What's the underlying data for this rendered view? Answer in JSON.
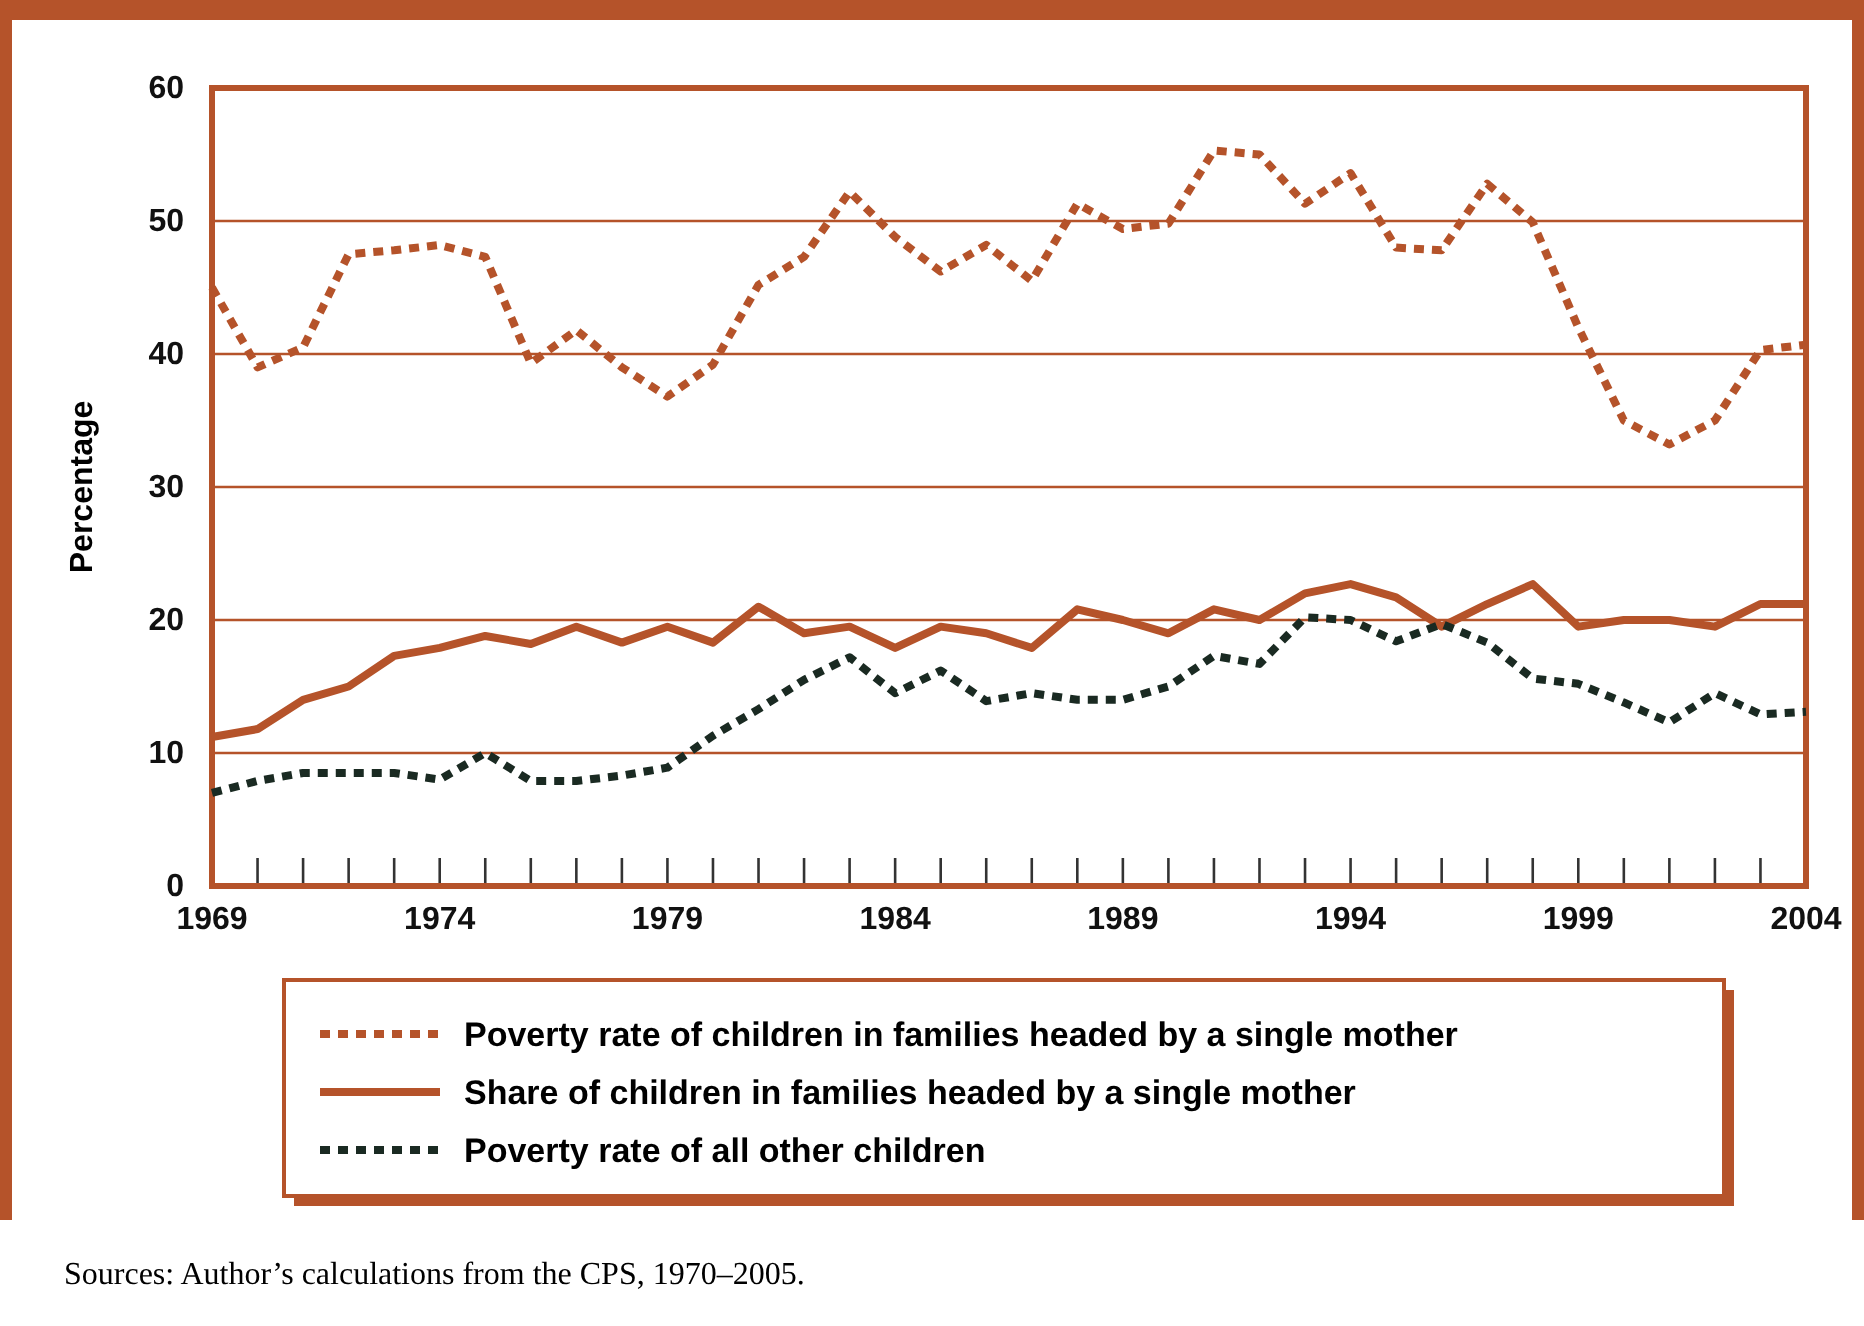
{
  "chart_data": {
    "type": "line",
    "ylabel": "Percentage",
    "x": [
      1969,
      1970,
      1971,
      1972,
      1973,
      1974,
      1975,
      1976,
      1977,
      1978,
      1979,
      1980,
      1981,
      1982,
      1983,
      1984,
      1985,
      1986,
      1987,
      1988,
      1989,
      1990,
      1991,
      1992,
      1993,
      1994,
      1995,
      1996,
      1997,
      1998,
      1999,
      2000,
      2001,
      2002,
      2003,
      2004
    ],
    "series": [
      {
        "name": "Poverty rate of children in families headed by a single mother",
        "color": "#b5532a",
        "line_style": "dotted",
        "values": [
          45,
          39,
          40.5,
          47.5,
          47.8,
          48.2,
          47.3,
          39.3,
          41.8,
          39,
          36.8,
          39.2,
          45.2,
          47.3,
          52.2,
          48.8,
          46.2,
          48.2,
          45.5,
          51.3,
          49.4,
          49.8,
          55.3,
          55,
          51.3,
          53.6,
          48,
          47.8,
          52.8,
          49.9,
          42,
          35,
          33.2,
          35,
          40.3,
          40.7
        ]
      },
      {
        "name": "Share of children in families headed by a single mother",
        "color": "#b5532a",
        "line_style": "solid",
        "values": [
          11.2,
          11.8,
          14,
          15,
          17.3,
          17.9,
          18.8,
          18.2,
          19.5,
          18.3,
          19.5,
          18.3,
          21,
          19,
          19.5,
          17.9,
          19.5,
          19,
          17.9,
          20.8,
          20,
          19,
          20.8,
          20,
          22,
          22.7,
          21.7,
          19.5,
          21.2,
          22.7,
          19.5,
          20,
          20,
          19.5,
          21.2,
          21.2
        ]
      },
      {
        "name": "Poverty rate of all other children",
        "color": "#1a2a22",
        "line_style": "dotted",
        "values": [
          7,
          7.9,
          8.5,
          8.5,
          8.5,
          8,
          10,
          7.9,
          7.9,
          8.3,
          8.9,
          11.3,
          13.3,
          15.5,
          17.2,
          14.5,
          16.2,
          13.9,
          14.5,
          14,
          14,
          15,
          17.3,
          16.7,
          20.2,
          20,
          18.4,
          19.7,
          18.3,
          15.6,
          15.2,
          13.8,
          12.3,
          14.5,
          12.9,
          13.1
        ]
      }
    ],
    "xlim": [
      1969,
      2004
    ],
    "xticks": [
      1969,
      {
        "value": 1970,
        "label": null
      },
      {
        "value": 1971,
        "label": null
      },
      {
        "value": 1972,
        "label": null
      },
      {
        "value": 1973,
        "label": null
      },
      1974,
      {
        "value": 1975,
        "label": null
      },
      {
        "value": 1976,
        "label": null
      },
      {
        "value": 1977,
        "label": null
      },
      {
        "value": 1978,
        "label": null
      },
      1979,
      {
        "value": 1980,
        "label": null
      },
      {
        "value": 1981,
        "label": null
      },
      {
        "value": 1982,
        "label": null
      },
      {
        "value": 1983,
        "label": null
      },
      1984,
      {
        "value": 1985,
        "label": null
      },
      {
        "value": 1986,
        "label": null
      },
      {
        "value": 1987,
        "label": null
      },
      {
        "value": 1988,
        "label": null
      },
      1989,
      {
        "value": 1990,
        "label": null
      },
      {
        "value": 1991,
        "label": null
      },
      {
        "value": 1992,
        "label": null
      },
      {
        "value": 1993,
        "label": null
      },
      1994,
      {
        "value": 1995,
        "label": null
      },
      {
        "value": 1996,
        "label": null
      },
      {
        "value": 1997,
        "label": null
      },
      {
        "value": 1998,
        "label": null
      },
      1999,
      {
        "value": 2000,
        "label": null
      },
      {
        "value": 2001,
        "label": null
      },
      {
        "value": 2002,
        "label": null
      },
      {
        "value": 2003,
        "label": null
      },
      2004
    ],
    "ylim": [
      0,
      60
    ],
    "yticks": [
      0,
      10,
      20,
      30,
      40,
      50,
      60
    ],
    "grid": "y",
    "legend": "bottom",
    "marker": "none",
    "annotations": [
      "Sources: Author’s calculations from the CPS, 1970–2005."
    ]
  }
}
